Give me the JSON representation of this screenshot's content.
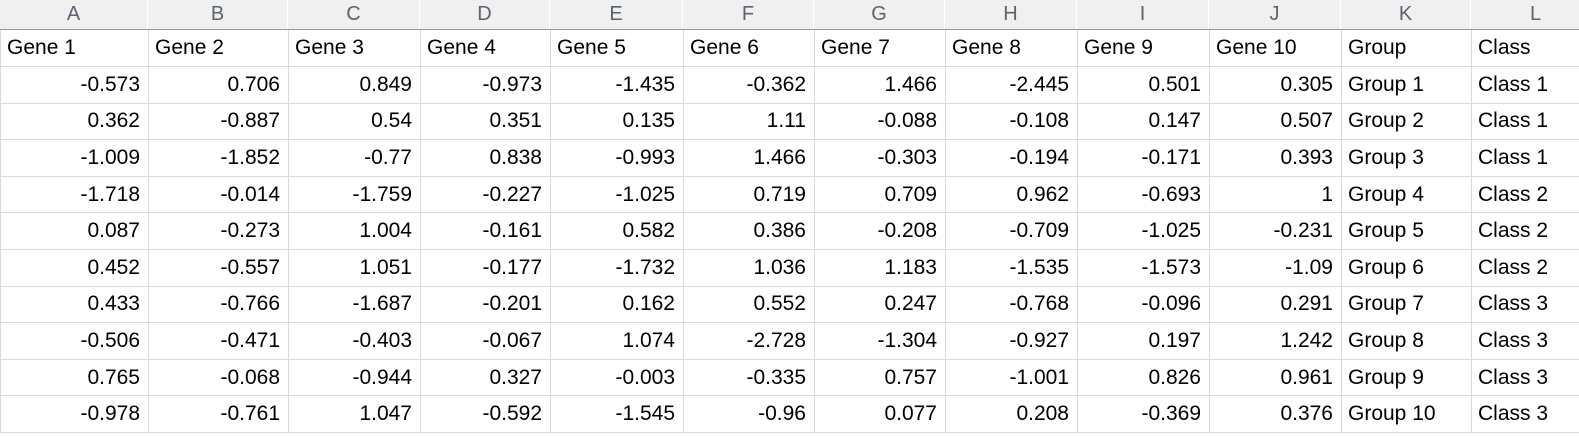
{
  "sheet": {
    "column_letters": [
      "A",
      "B",
      "C",
      "D",
      "E",
      "F",
      "G",
      "H",
      "I",
      "J",
      "K",
      "L"
    ],
    "headers": [
      "Gene 1",
      "Gene 2",
      "Gene 3",
      "Gene 4",
      "Gene 5",
      "Gene 6",
      "Gene 7",
      "Gene 8",
      "Gene 9",
      "Gene 10",
      "Group",
      "Class"
    ],
    "rows": [
      [
        "-0.573",
        "0.706",
        "0.849",
        "-0.973",
        "-1.435",
        "-0.362",
        "1.466",
        "-2.445",
        "0.501",
        "0.305",
        "Group 1",
        "Class 1"
      ],
      [
        "0.362",
        "-0.887",
        "0.54",
        "0.351",
        "0.135",
        "1.11",
        "-0.088",
        "-0.108",
        "0.147",
        "0.507",
        "Group 2",
        "Class 1"
      ],
      [
        "-1.009",
        "-1.852",
        "-0.77",
        "0.838",
        "-0.993",
        "1.466",
        "-0.303",
        "-0.194",
        "-0.171",
        "0.393",
        "Group 3",
        "Class 1"
      ],
      [
        "-1.718",
        "-0.014",
        "-1.759",
        "-0.227",
        "-1.025",
        "0.719",
        "0.709",
        "0.962",
        "-0.693",
        "1",
        "Group 4",
        "Class 2"
      ],
      [
        "0.087",
        "-0.273",
        "1.004",
        "-0.161",
        "0.582",
        "0.386",
        "-0.208",
        "-0.709",
        "-1.025",
        "-0.231",
        "Group 5",
        "Class 2"
      ],
      [
        "0.452",
        "-0.557",
        "1.051",
        "-0.177",
        "-1.732",
        "1.036",
        "1.183",
        "-1.535",
        "-1.573",
        "-1.09",
        "Group 6",
        "Class 2"
      ],
      [
        "0.433",
        "-0.766",
        "-1.687",
        "-0.201",
        "0.162",
        "0.552",
        "0.247",
        "-0.768",
        "-0.096",
        "0.291",
        "Group 7",
        "Class 3"
      ],
      [
        "-0.506",
        "-0.471",
        "-0.403",
        "-0.067",
        "1.074",
        "-2.728",
        "-1.304",
        "-0.927",
        "0.197",
        "1.242",
        "Group 8",
        "Class 3"
      ],
      [
        "0.765",
        "-0.068",
        "-0.944",
        "0.327",
        "-0.003",
        "-0.335",
        "0.757",
        "-1.001",
        "0.826",
        "0.961",
        "Group 9",
        "Class 3"
      ],
      [
        "-0.978",
        "-0.761",
        "1.047",
        "-0.592",
        "-1.545",
        "-0.96",
        "0.077",
        "0.208",
        "-0.369",
        "0.376",
        "Group 10",
        "Class 3"
      ]
    ],
    "colors": {
      "header_letter_text": "#5a6470",
      "header_strip_bg": "#f0f0f0",
      "header_strip_border": "#9b9b9b",
      "gridline": "#d9d9d9",
      "cell_text": "#000000",
      "background": "#ffffff"
    }
  }
}
